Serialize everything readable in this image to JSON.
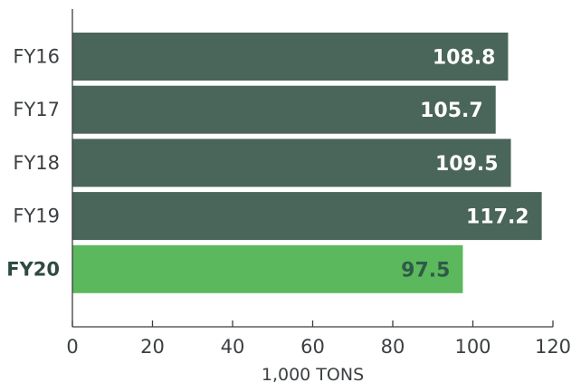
{
  "chart_data": {
    "type": "bar",
    "orientation": "horizontal",
    "categories": [
      "FY16",
      "FY17",
      "FY18",
      "FY19",
      "FY20"
    ],
    "values": [
      108.8,
      105.7,
      109.5,
      117.2,
      97.5
    ],
    "value_labels": [
      "108.8",
      "105.7",
      "109.5",
      "117.2",
      "97.5"
    ],
    "highlight_category": "FY20",
    "xlabel": "1,000 TONS",
    "ylabel": "",
    "xlim": [
      0,
      120
    ],
    "xticks": [
      0,
      20,
      40,
      60,
      80,
      100,
      120
    ],
    "grid": false,
    "colors": {
      "bar": "#4a6559",
      "highlight_bar": "#5cb85c",
      "axis": "#3b3f41"
    }
  }
}
